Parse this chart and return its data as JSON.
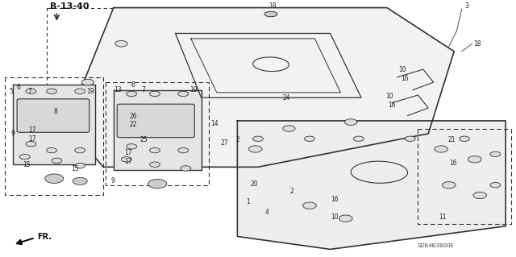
{
  "bg_color": "#ffffff",
  "diagram_title": "B-13-40",
  "part_number": "SDR4B3800E",
  "fig_width": 6.4,
  "fig_height": 3.19,
  "dpi": 100,
  "line_color": "#333333"
}
